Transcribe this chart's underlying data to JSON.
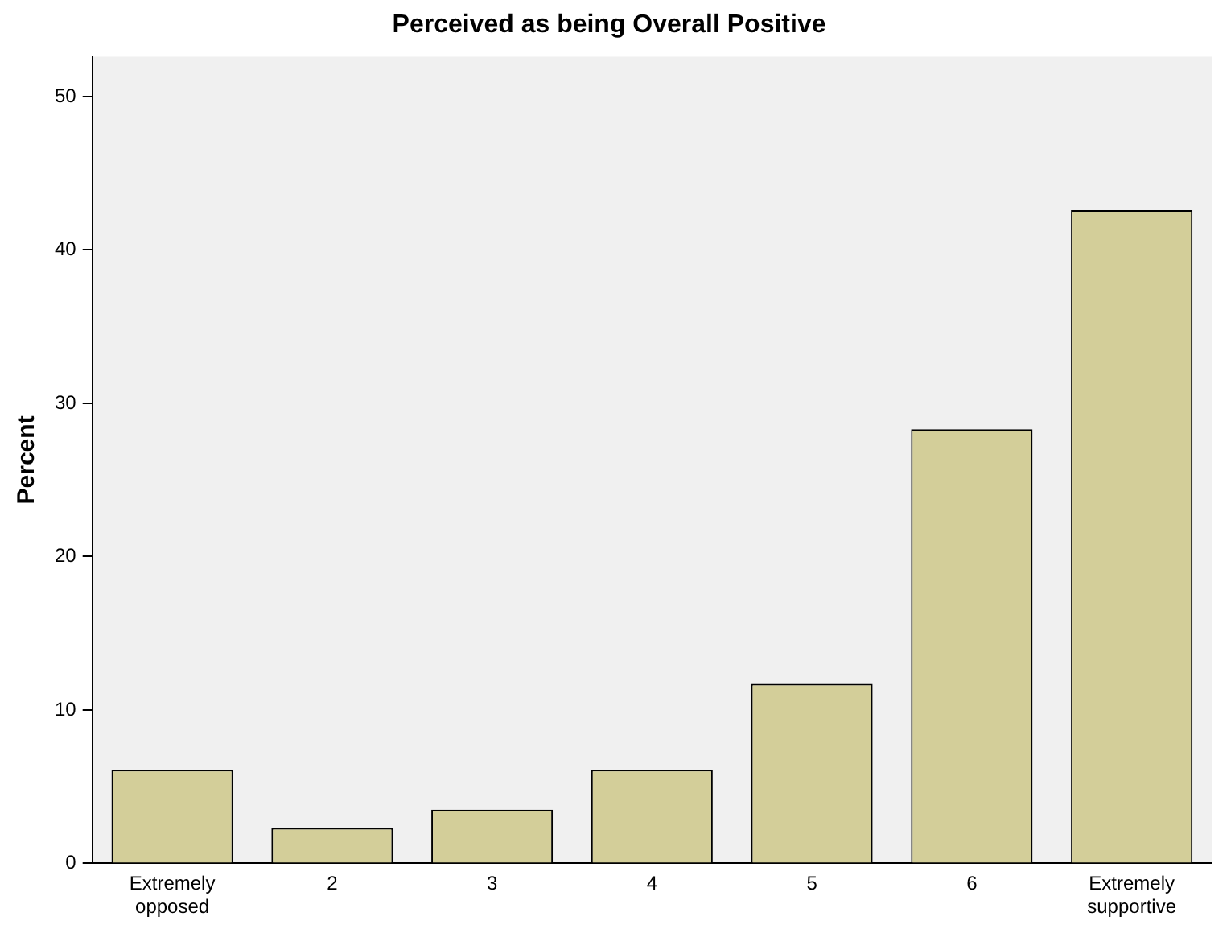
{
  "chart_data": {
    "type": "bar",
    "title": "Perceived as being Overall Positive",
    "ylabel": "Percent",
    "categories": [
      "Extremely opposed",
      "2",
      "3",
      "4",
      "5",
      "6",
      "Extremely supportive"
    ],
    "values": [
      6.1,
      2.3,
      3.5,
      6.1,
      11.7,
      28.3,
      42.6
    ],
    "color": "#d3ce99",
    "ylim": [
      0,
      52.6
    ],
    "yticks": [
      0,
      10,
      20,
      30,
      40,
      50
    ],
    "grid": false,
    "legend": false
  }
}
